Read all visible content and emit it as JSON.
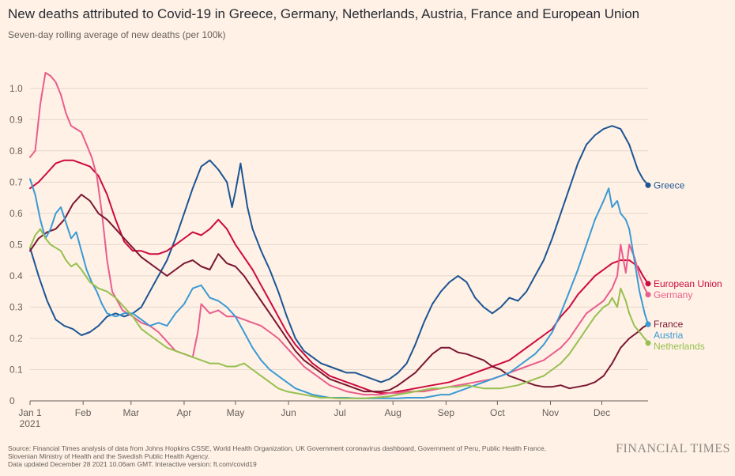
{
  "header": {
    "title": "New deaths attributed to Covid-19 in Greece, Germany, Netherlands, Austria, France and European Union",
    "subtitle": "Seven-day rolling average of new deaths (per 100k)"
  },
  "footer": {
    "source_line1": "Source: Financial Times analysis of data from Johns Hopkins CSSE, World Health Organization, UK Government coronavirus dashboard, Government of Peru, Public Health France,",
    "source_line2": "Slovenian Ministry of Health and the Swedish Public Health Agency.",
    "updated": "Data updated December 28 2021 10.06am GMT. Interactive version: ft.com/covid19",
    "brand": "FINANCIAL TIMES"
  },
  "chart_data": {
    "type": "line",
    "title": "New deaths attributed to Covid-19 in Greece, Germany, Netherlands, Austria, France and European Union",
    "subtitle": "Seven-day rolling average of new deaths (per 100k)",
    "x_unit": "day of 2021",
    "x_start_label": "Jan 1",
    "x_start_year": "2021",
    "xlim": [
      0,
      361
    ],
    "ylim": [
      0,
      1.05
    ],
    "y_ticks": [
      0,
      0.1,
      0.2,
      0.3,
      0.4,
      0.5,
      0.6,
      0.7,
      0.8,
      0.9,
      1.0
    ],
    "y_tick_labels": [
      "0",
      "0.1",
      "0.2",
      "0.3",
      "0.4",
      "0.5",
      "0.6",
      "0.7",
      "0.8",
      "0.9",
      "1.0"
    ],
    "x_ticks": [
      {
        "day": 0,
        "label": "Jan 1"
      },
      {
        "day": 31,
        "label": "Feb"
      },
      {
        "day": 59,
        "label": "Mar"
      },
      {
        "day": 90,
        "label": "Apr"
      },
      {
        "day": 120,
        "label": "May"
      },
      {
        "day": 151,
        "label": "Jun"
      },
      {
        "day": 181,
        "label": "Jul"
      },
      {
        "day": 212,
        "label": "Aug"
      },
      {
        "day": 243,
        "label": "Sep"
      },
      {
        "day": 273,
        "label": "Oct"
      },
      {
        "day": 304,
        "label": "Nov"
      },
      {
        "day": 334,
        "label": "Dec"
      }
    ],
    "grid": true,
    "legend": "end-of-line labels",
    "series": [
      {
        "name": "Greece",
        "color": "#1c5594",
        "end_value": 0.69,
        "x": [
          0,
          5,
          10,
          15,
          20,
          25,
          30,
          35,
          40,
          45,
          50,
          55,
          60,
          65,
          70,
          75,
          80,
          85,
          90,
          95,
          100,
          105,
          110,
          115,
          118,
          120,
          123,
          127,
          130,
          135,
          140,
          145,
          150,
          155,
          160,
          165,
          170,
          175,
          180,
          185,
          190,
          195,
          200,
          205,
          210,
          215,
          220,
          225,
          230,
          235,
          240,
          245,
          250,
          255,
          260,
          265,
          270,
          275,
          280,
          285,
          290,
          295,
          300,
          305,
          310,
          315,
          320,
          325,
          330,
          335,
          340,
          345,
          350,
          355,
          358,
          361
        ],
        "y": [
          0.49,
          0.4,
          0.32,
          0.26,
          0.24,
          0.23,
          0.21,
          0.22,
          0.24,
          0.27,
          0.28,
          0.27,
          0.28,
          0.3,
          0.35,
          0.4,
          0.45,
          0.52,
          0.6,
          0.68,
          0.75,
          0.77,
          0.74,
          0.7,
          0.62,
          0.67,
          0.76,
          0.62,
          0.55,
          0.48,
          0.42,
          0.35,
          0.27,
          0.2,
          0.16,
          0.14,
          0.12,
          0.11,
          0.1,
          0.09,
          0.09,
          0.08,
          0.07,
          0.06,
          0.07,
          0.09,
          0.12,
          0.18,
          0.25,
          0.31,
          0.35,
          0.38,
          0.4,
          0.38,
          0.33,
          0.3,
          0.28,
          0.3,
          0.33,
          0.32,
          0.35,
          0.4,
          0.45,
          0.52,
          0.6,
          0.68,
          0.76,
          0.82,
          0.85,
          0.87,
          0.88,
          0.87,
          0.82,
          0.74,
          0.71,
          0.69
        ]
      },
      {
        "name": "European Union",
        "color": "#cc0a3e",
        "end_value": 0.375,
        "x": [
          0,
          5,
          10,
          15,
          20,
          25,
          30,
          35,
          40,
          45,
          50,
          55,
          60,
          65,
          70,
          75,
          80,
          85,
          90,
          95,
          100,
          105,
          110,
          115,
          120,
          125,
          130,
          135,
          140,
          145,
          150,
          155,
          160,
          165,
          170,
          175,
          180,
          185,
          190,
          195,
          200,
          205,
          210,
          215,
          220,
          225,
          230,
          235,
          240,
          245,
          250,
          255,
          260,
          265,
          270,
          275,
          280,
          285,
          290,
          295,
          300,
          305,
          310,
          315,
          320,
          325,
          330,
          335,
          340,
          345,
          350,
          355,
          358,
          361
        ],
        "y": [
          0.68,
          0.7,
          0.73,
          0.76,
          0.77,
          0.77,
          0.76,
          0.75,
          0.72,
          0.66,
          0.58,
          0.51,
          0.48,
          0.48,
          0.47,
          0.47,
          0.48,
          0.5,
          0.52,
          0.54,
          0.53,
          0.55,
          0.58,
          0.55,
          0.5,
          0.46,
          0.42,
          0.37,
          0.32,
          0.27,
          0.22,
          0.18,
          0.15,
          0.12,
          0.1,
          0.08,
          0.07,
          0.06,
          0.05,
          0.04,
          0.03,
          0.025,
          0.025,
          0.03,
          0.035,
          0.04,
          0.045,
          0.05,
          0.055,
          0.06,
          0.07,
          0.08,
          0.09,
          0.1,
          0.11,
          0.12,
          0.13,
          0.15,
          0.17,
          0.19,
          0.21,
          0.23,
          0.27,
          0.3,
          0.34,
          0.37,
          0.4,
          0.42,
          0.44,
          0.45,
          0.45,
          0.43,
          0.4,
          0.375
        ]
      },
      {
        "name": "Germany",
        "color": "#e95d8c",
        "end_value": 0.34,
        "x": [
          0,
          3,
          6,
          9,
          12,
          15,
          18,
          21,
          24,
          27,
          30,
          33,
          36,
          39,
          42,
          45,
          48,
          51,
          54,
          57,
          60,
          65,
          70,
          75,
          80,
          85,
          90,
          95,
          98,
          100,
          105,
          110,
          115,
          120,
          125,
          130,
          135,
          140,
          145,
          150,
          155,
          160,
          165,
          170,
          175,
          180,
          185,
          190,
          195,
          200,
          205,
          210,
          215,
          220,
          225,
          230,
          235,
          240,
          245,
          250,
          255,
          260,
          265,
          270,
          275,
          280,
          285,
          290,
          295,
          300,
          305,
          310,
          315,
          320,
          325,
          330,
          335,
          340,
          343,
          345,
          348,
          350,
          353,
          356,
          359,
          361
        ],
        "y": [
          0.78,
          0.8,
          0.95,
          1.05,
          1.04,
          1.02,
          0.98,
          0.92,
          0.88,
          0.87,
          0.86,
          0.82,
          0.78,
          0.72,
          0.6,
          0.45,
          0.35,
          0.32,
          0.29,
          0.28,
          0.27,
          0.25,
          0.24,
          0.22,
          0.19,
          0.16,
          0.15,
          0.14,
          0.22,
          0.31,
          0.28,
          0.29,
          0.27,
          0.27,
          0.26,
          0.25,
          0.24,
          0.22,
          0.2,
          0.17,
          0.14,
          0.11,
          0.09,
          0.07,
          0.05,
          0.04,
          0.03,
          0.025,
          0.02,
          0.02,
          0.02,
          0.025,
          0.025,
          0.03,
          0.03,
          0.03,
          0.035,
          0.04,
          0.045,
          0.05,
          0.055,
          0.06,
          0.065,
          0.07,
          0.08,
          0.09,
          0.1,
          0.11,
          0.12,
          0.13,
          0.15,
          0.17,
          0.2,
          0.24,
          0.28,
          0.3,
          0.32,
          0.36,
          0.4,
          0.5,
          0.41,
          0.5,
          0.46,
          0.4,
          0.36,
          0.34
        ]
      },
      {
        "name": "France",
        "color": "#7a1632",
        "end_value": 0.245,
        "x": [
          0,
          5,
          10,
          15,
          20,
          25,
          30,
          35,
          40,
          45,
          50,
          55,
          60,
          65,
          70,
          75,
          80,
          85,
          90,
          95,
          100,
          105,
          110,
          115,
          120,
          125,
          130,
          135,
          140,
          145,
          150,
          155,
          160,
          165,
          170,
          175,
          180,
          185,
          190,
          195,
          200,
          205,
          210,
          215,
          220,
          225,
          230,
          235,
          240,
          245,
          250,
          255,
          260,
          265,
          270,
          275,
          280,
          285,
          290,
          295,
          300,
          305,
          310,
          315,
          320,
          325,
          330,
          335,
          340,
          345,
          350,
          355,
          358,
          361
        ],
        "y": [
          0.48,
          0.52,
          0.54,
          0.55,
          0.58,
          0.63,
          0.66,
          0.64,
          0.6,
          0.58,
          0.55,
          0.52,
          0.49,
          0.46,
          0.44,
          0.42,
          0.4,
          0.42,
          0.44,
          0.45,
          0.43,
          0.42,
          0.47,
          0.44,
          0.43,
          0.4,
          0.36,
          0.32,
          0.28,
          0.24,
          0.2,
          0.16,
          0.13,
          0.11,
          0.09,
          0.07,
          0.06,
          0.05,
          0.04,
          0.03,
          0.03,
          0.03,
          0.035,
          0.05,
          0.07,
          0.09,
          0.12,
          0.15,
          0.17,
          0.17,
          0.155,
          0.15,
          0.14,
          0.13,
          0.11,
          0.1,
          0.08,
          0.07,
          0.06,
          0.05,
          0.045,
          0.045,
          0.05,
          0.04,
          0.045,
          0.05,
          0.06,
          0.08,
          0.12,
          0.17,
          0.2,
          0.22,
          0.235,
          0.245
        ]
      },
      {
        "name": "Austria",
        "color": "#3a9ad4",
        "end_value": 0.245,
        "x": [
          0,
          3,
          6,
          9,
          12,
          15,
          18,
          21,
          24,
          27,
          30,
          33,
          36,
          39,
          42,
          45,
          50,
          55,
          60,
          65,
          70,
          75,
          80,
          85,
          90,
          95,
          100,
          105,
          110,
          115,
          120,
          125,
          130,
          135,
          140,
          145,
          150,
          155,
          160,
          165,
          170,
          175,
          180,
          185,
          190,
          195,
          200,
          205,
          210,
          215,
          220,
          225,
          230,
          235,
          240,
          245,
          250,
          255,
          260,
          265,
          270,
          275,
          280,
          285,
          290,
          295,
          300,
          305,
          310,
          315,
          320,
          325,
          330,
          335,
          338,
          340,
          343,
          345,
          348,
          350,
          353,
          356,
          359,
          361
        ],
        "y": [
          0.71,
          0.66,
          0.58,
          0.52,
          0.55,
          0.6,
          0.62,
          0.57,
          0.52,
          0.54,
          0.48,
          0.42,
          0.38,
          0.35,
          0.31,
          0.28,
          0.27,
          0.28,
          0.28,
          0.26,
          0.24,
          0.25,
          0.24,
          0.28,
          0.31,
          0.36,
          0.37,
          0.33,
          0.32,
          0.3,
          0.27,
          0.22,
          0.17,
          0.13,
          0.1,
          0.08,
          0.06,
          0.04,
          0.03,
          0.02,
          0.015,
          0.01,
          0.01,
          0.01,
          0.008,
          0.008,
          0.008,
          0.008,
          0.008,
          0.008,
          0.01,
          0.01,
          0.01,
          0.015,
          0.02,
          0.02,
          0.03,
          0.04,
          0.05,
          0.06,
          0.07,
          0.08,
          0.09,
          0.11,
          0.13,
          0.15,
          0.18,
          0.22,
          0.28,
          0.35,
          0.42,
          0.5,
          0.58,
          0.64,
          0.68,
          0.62,
          0.64,
          0.6,
          0.58,
          0.55,
          0.45,
          0.35,
          0.28,
          0.245
        ]
      },
      {
        "name": "Netherlands",
        "color": "#96c050",
        "end_value": 0.185,
        "x": [
          0,
          3,
          6,
          9,
          12,
          15,
          18,
          21,
          24,
          27,
          30,
          35,
          40,
          45,
          50,
          55,
          60,
          65,
          70,
          75,
          80,
          85,
          90,
          95,
          100,
          105,
          110,
          115,
          120,
          125,
          130,
          135,
          140,
          145,
          150,
          155,
          160,
          165,
          170,
          175,
          180,
          185,
          190,
          195,
          200,
          205,
          210,
          215,
          220,
          225,
          230,
          235,
          240,
          245,
          250,
          255,
          260,
          265,
          270,
          275,
          280,
          285,
          290,
          295,
          300,
          305,
          310,
          315,
          320,
          325,
          330,
          335,
          338,
          340,
          343,
          345,
          348,
          350,
          353,
          356,
          359,
          361
        ],
        "y": [
          0.49,
          0.53,
          0.55,
          0.52,
          0.5,
          0.49,
          0.48,
          0.45,
          0.43,
          0.44,
          0.42,
          0.38,
          0.36,
          0.35,
          0.33,
          0.3,
          0.27,
          0.23,
          0.21,
          0.19,
          0.17,
          0.16,
          0.15,
          0.14,
          0.13,
          0.12,
          0.12,
          0.11,
          0.11,
          0.12,
          0.1,
          0.08,
          0.06,
          0.04,
          0.03,
          0.025,
          0.02,
          0.015,
          0.01,
          0.01,
          0.008,
          0.008,
          0.008,
          0.008,
          0.01,
          0.012,
          0.015,
          0.02,
          0.025,
          0.03,
          0.035,
          0.04,
          0.04,
          0.045,
          0.045,
          0.05,
          0.045,
          0.04,
          0.04,
          0.04,
          0.045,
          0.05,
          0.06,
          0.07,
          0.08,
          0.1,
          0.12,
          0.15,
          0.19,
          0.23,
          0.27,
          0.3,
          0.31,
          0.33,
          0.3,
          0.36,
          0.32,
          0.28,
          0.24,
          0.22,
          0.2,
          0.185
        ]
      }
    ]
  }
}
